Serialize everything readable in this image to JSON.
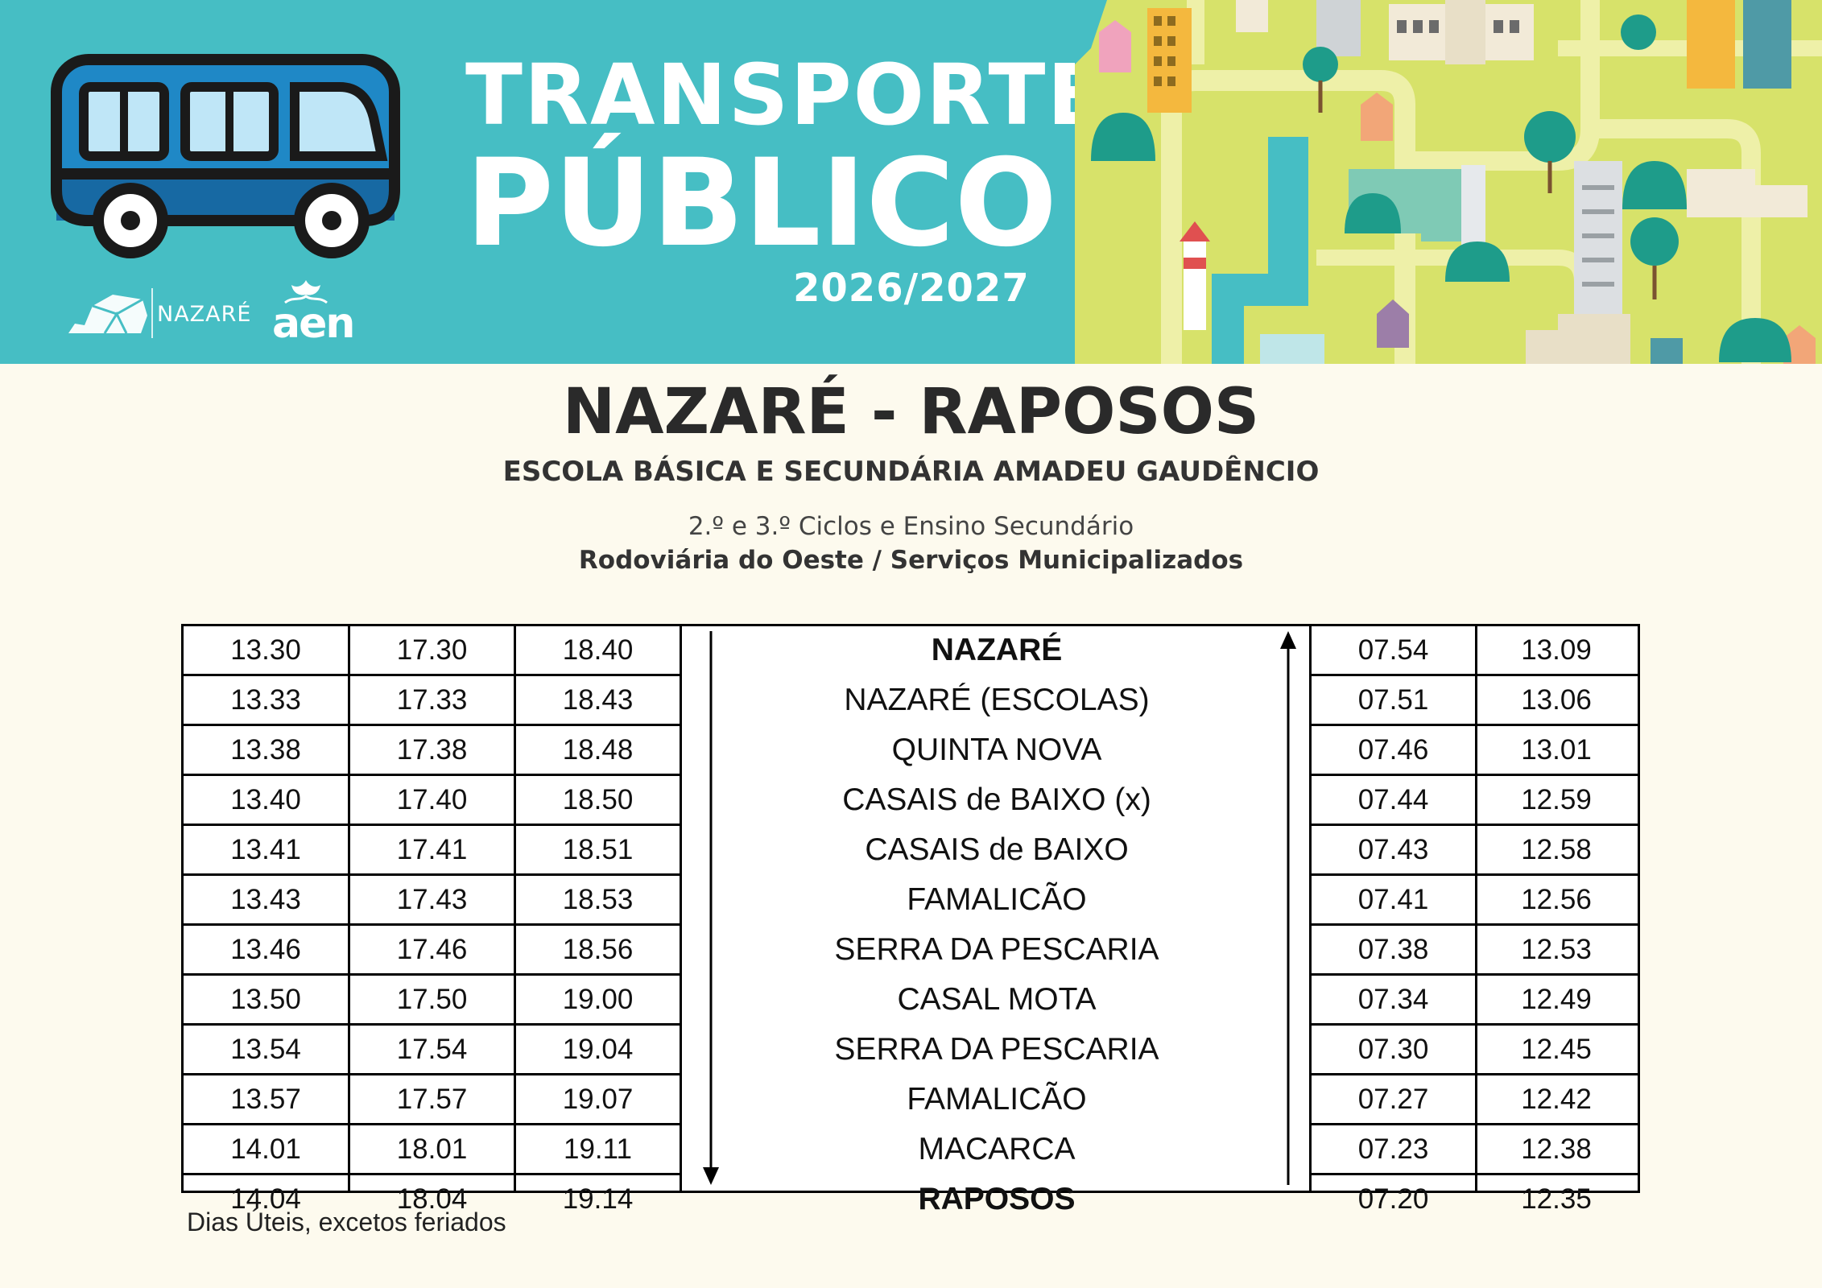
{
  "header": {
    "title_line1": "TRANSPORTE",
    "title_line2": "PÚBLICO",
    "year": "2026/2027",
    "logo_nazare": "NAZARÉ",
    "logo_aen": "aen"
  },
  "route": {
    "title": "NAZARÉ - RAPOSOS",
    "school": "ESCOLA BÁSICA E SECUNDÁRIA AMADEU GAUDÊNCIO",
    "cycles": "2.º e 3.º Ciclos e Ensino Secundário",
    "operators": "Rodoviária do Oeste / Serviços Municipalizados"
  },
  "timetable": {
    "outbound": [
      [
        "13.30",
        "13.33",
        "13.38",
        "13.40",
        "13.41",
        "13.43",
        "13.46",
        "13.50",
        "13.54",
        "13.57",
        "14.01",
        "14.04"
      ],
      [
        "17.30",
        "17.33",
        "17.38",
        "17.40",
        "17.41",
        "17.43",
        "17.46",
        "17.50",
        "17.54",
        "17.57",
        "18.01",
        "18.04"
      ],
      [
        "18.40",
        "18.43",
        "18.48",
        "18.50",
        "18.51",
        "18.53",
        "18.56",
        "19.00",
        "19.04",
        "19.07",
        "19.11",
        "19.14"
      ]
    ],
    "stops": [
      {
        "name": "NAZARÉ",
        "bold": true
      },
      {
        "name": "NAZARÉ (ESCOLAS)",
        "bold": false
      },
      {
        "name": "QUINTA NOVA",
        "bold": false
      },
      {
        "name": "CASAIS de BAIXO (x)",
        "bold": false
      },
      {
        "name": "CASAIS de BAIXO",
        "bold": false
      },
      {
        "name": "FAMALICÃO",
        "bold": false
      },
      {
        "name": "SERRA DA PESCARIA",
        "bold": false
      },
      {
        "name": "CASAL MOTA",
        "bold": false
      },
      {
        "name": "SERRA DA PESCARIA",
        "bold": false
      },
      {
        "name": "FAMALICÃO",
        "bold": false
      },
      {
        "name": "MACARCA",
        "bold": false
      },
      {
        "name": "RAPOSOS",
        "bold": true
      }
    ],
    "inbound": [
      [
        "07.54",
        "07.51",
        "07.46",
        "07.44",
        "07.43",
        "07.41",
        "07.38",
        "07.34",
        "07.30",
        "07.27",
        "07.23",
        "07.20"
      ],
      [
        "13.09",
        "13.06",
        "13.01",
        "12.59",
        "12.58",
        "12.56",
        "12.53",
        "12.49",
        "12.45",
        "12.42",
        "12.38",
        "12.35"
      ]
    ]
  },
  "footnote": "Dias Úteis, excetos feriados",
  "colors": {
    "banner": "#46bec4",
    "bus": "#1f88c6",
    "map_land": "#d7e26a",
    "page_bg": "#fdfaee"
  },
  "icons": [
    "bus-icon",
    "city-map-illustration",
    "nazare-logo-icon",
    "aen-logo-icon",
    "down-arrow-icon",
    "up-arrow-icon"
  ]
}
